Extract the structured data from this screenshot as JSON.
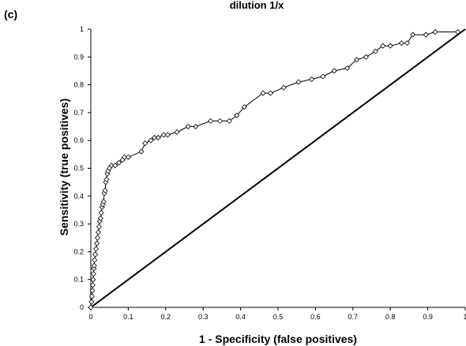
{
  "chart_data": {
    "type": "line",
    "panel_label": "(c)",
    "title": "dilution 1/x",
    "xlabel": "1 - Specificity (false positives)",
    "ylabel": "Sensitivity (true positives)",
    "xlim": [
      0,
      1
    ],
    "ylim": [
      0,
      1
    ],
    "x_ticks": [
      "0",
      "0.1",
      "0.2",
      "0.3",
      "0.4",
      "0.5",
      "0.6",
      "0.7",
      "0.8",
      "0.9",
      "1"
    ],
    "y_ticks": [
      "0",
      "0.1",
      "0.2",
      "0.3",
      "0.4",
      "0.5",
      "0.6",
      "0.7",
      "0.8",
      "0.9",
      "1"
    ],
    "grid": false,
    "legend": "none",
    "series": [
      {
        "marker": "diamond",
        "x": [
          0,
          0.002,
          0.003,
          0.004,
          0.005,
          0.006,
          0.007,
          0.008,
          0.009,
          0.01,
          0.012,
          0.014,
          0.016,
          0.018,
          0.02,
          0.022,
          0.024,
          0.026,
          0.028,
          0.03,
          0.032,
          0.034,
          0.036,
          0.038,
          0.04,
          0.042,
          0.044,
          0.046,
          0.05,
          0.055,
          0.065,
          0.075,
          0.085,
          0.09,
          0.1,
          0.135,
          0.145,
          0.16,
          0.17,
          0.18,
          0.195,
          0.205,
          0.23,
          0.26,
          0.28,
          0.32,
          0.345,
          0.37,
          0.39,
          0.41,
          0.46,
          0.48,
          0.515,
          0.555,
          0.59,
          0.62,
          0.65,
          0.685,
          0.71,
          0.735,
          0.76,
          0.78,
          0.8,
          0.83,
          0.845,
          0.86,
          0.895,
          0.92,
          0.98
        ],
        "y": [
          0,
          0.02,
          0.04,
          0.06,
          0.08,
          0.1,
          0.12,
          0.14,
          0.15,
          0.17,
          0.19,
          0.21,
          0.23,
          0.25,
          0.27,
          0.29,
          0.31,
          0.32,
          0.34,
          0.36,
          0.37,
          0.38,
          0.41,
          0.42,
          0.45,
          0.46,
          0.48,
          0.49,
          0.5,
          0.51,
          0.51,
          0.52,
          0.53,
          0.54,
          0.54,
          0.56,
          0.59,
          0.6,
          0.61,
          0.61,
          0.62,
          0.62,
          0.63,
          0.65,
          0.65,
          0.67,
          0.67,
          0.67,
          0.69,
          0.72,
          0.77,
          0.77,
          0.79,
          0.81,
          0.82,
          0.83,
          0.85,
          0.86,
          0.89,
          0.9,
          0.92,
          0.94,
          0.94,
          0.95,
          0.95,
          0.98,
          0.98,
          0.99,
          0.99
        ]
      }
    ],
    "reference_line": {
      "x": [
        0,
        1
      ],
      "y": [
        0,
        1
      ]
    }
  }
}
